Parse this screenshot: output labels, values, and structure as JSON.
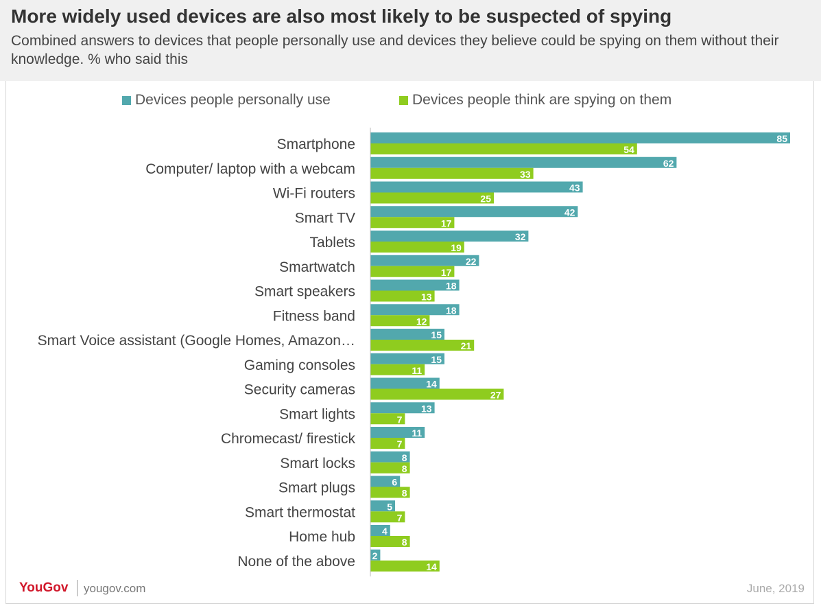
{
  "header": {
    "title": "More widely used devices are also most likely to be suspected of spying",
    "subtitle": "Combined answers to devices that people personally use and devices they believe could be spying on them without their knowledge. % who said this"
  },
  "colors": {
    "personally_use": "#52a8ad",
    "spying": "#8fcc1f",
    "brand": "#d1182b"
  },
  "footer": {
    "logo": "YouGov",
    "url": "yougov.com",
    "date": "June, 2019"
  },
  "chart_data": {
    "type": "bar",
    "orientation": "horizontal",
    "title": "More widely used devices are also most likely to be suspected of spying",
    "subtitle": "Combined answers to devices that people personally use and devices they believe could be spying on them without their knowledge. % who said this",
    "categories": [
      "Smartphone",
      "Computer/ laptop with a webcam",
      "Wi-Fi routers",
      "Smart TV",
      "Tablets",
      "Smartwatch",
      "Smart speakers",
      "Fitness band",
      "Smart Voice assistant (Google Homes, Amazon…",
      "Gaming consoles",
      "Security cameras",
      "Smart lights",
      "Chromecast/ firestick",
      "Smart locks",
      "Smart plugs",
      "Smart thermostat",
      "Home hub",
      "None of the above"
    ],
    "series": [
      {
        "name": "Devices people personally use",
        "color": "#52a8ad",
        "values": [
          85,
          62,
          43,
          42,
          32,
          22,
          18,
          18,
          15,
          15,
          14,
          13,
          11,
          8,
          6,
          5,
          4,
          2
        ]
      },
      {
        "name": "Devices people think are spying on them",
        "color": "#8fcc1f",
        "values": [
          54,
          33,
          25,
          17,
          19,
          17,
          13,
          12,
          21,
          11,
          27,
          7,
          7,
          8,
          8,
          7,
          8,
          14
        ]
      }
    ],
    "xlim": [
      0,
      85
    ],
    "grid": false,
    "legend_position": "top",
    "data_labels": true
  }
}
